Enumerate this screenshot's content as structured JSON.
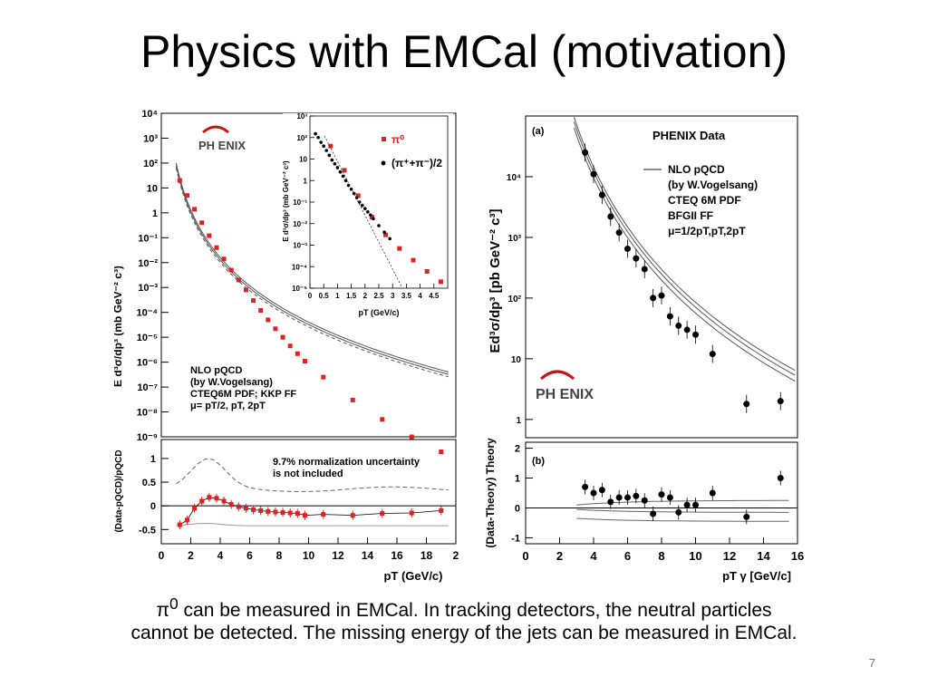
{
  "slide": {
    "title": "Physics with EMCal (motivation)",
    "caption_line1_symbol": "π",
    "caption_line1_sup": "0",
    "caption_line1_rest": " can be measured in EMCal. In tracking detectors, the neutral particles",
    "caption_line2": "cannot be detected. The missing energy of the jets can be measured in EMCal.",
    "page_number": "7"
  },
  "colors": {
    "red_points": "#dd2222",
    "black": "#000000",
    "logo_red": "#cc1111"
  },
  "chart_data": [
    {
      "type": "scatter",
      "panel": "left-main",
      "logo_text": "PH ENIX",
      "ylabel": "E d³σ/dp³ (mb GeV⁻² c³)",
      "yscale": "log",
      "ylim": [
        1e-09,
        10000
      ],
      "xlim": [
        0,
        20
      ],
      "ytick_labels": [
        "10⁴",
        "10³",
        "10²",
        "10",
        "1",
        "10⁻¹",
        "10⁻²",
        "10⁻³",
        "10⁻⁴",
        "10⁻⁵",
        "10⁻⁶",
        "10⁻⁷",
        "10⁻⁸",
        "10⁻⁹"
      ],
      "annotation": [
        "NLO pQCD",
        "(by W.Vogelsang)",
        "CTEQ6M PDF; KKP FF",
        "μ= pT/2, pT, 2pT"
      ],
      "series": [
        {
          "x": [
            1.25,
            1.75,
            2.25,
            2.75,
            3.25,
            3.75,
            4.25,
            4.75,
            5.25,
            5.75,
            6.25,
            6.75,
            7.25,
            7.75,
            8.25,
            8.75,
            9.25,
            9.75,
            11,
            13,
            15,
            17,
            19
          ],
          "values": [
            20,
            5,
            1.4,
            0.4,
            0.12,
            0.04,
            0.014,
            0.005,
            0.002,
            0.0008,
            0.0003,
            0.00012,
            5e-05,
            2.2e-05,
            1e-05,
            4.5e-06,
            2.2e-06,
            1.1e-06,
            2.5e-07,
            3e-08,
            5e-09,
            1e-09,
            2.5e-10
          ]
        }
      ]
    },
    {
      "type": "scatter",
      "panel": "left-inset",
      "ylabel": "E d³σ/dp³ (mb GeV⁻² c³)",
      "xlabel": "pT (GeV/c)",
      "yscale": "log",
      "ylim": [
        1e-05,
        1000
      ],
      "xlim": [
        0,
        5
      ],
      "ytick_labels": [
        "10³",
        "10²",
        "10",
        "1",
        "10⁻¹",
        "10⁻²",
        "10⁻³",
        "10⁻⁴",
        "10⁻⁵"
      ],
      "xtick_labels": [
        "0",
        "0.5",
        "1",
        "1.5",
        "2",
        "2.5",
        "3",
        "3.5",
        "4",
        "4.5"
      ],
      "series": [
        {
          "name": "π⁰",
          "x": [
            0.75,
            1.25,
            1.75,
            2.25,
            2.75,
            3.25,
            3.75,
            4.25,
            4.75
          ],
          "values": [
            40,
            3,
            0.2,
            0.02,
            0.003,
            0.0007,
            0.0002,
            6e-05,
            2e-05
          ]
        },
        {
          "name": "(π⁺+π⁻)/2",
          "x": [
            0.2,
            0.3,
            0.4,
            0.5,
            0.6,
            0.7,
            0.8,
            0.9,
            1.0,
            1.1,
            1.2,
            1.3,
            1.4,
            1.5,
            1.6,
            1.7,
            1.8,
            1.9,
            2.0,
            2.1,
            2.2,
            2.3,
            2.5,
            2.7,
            2.9
          ],
          "values": [
            150,
            100,
            60,
            40,
            25,
            15,
            9,
            6,
            4,
            2.5,
            1.6,
            1.0,
            0.6,
            0.4,
            0.25,
            0.16,
            0.1,
            0.07,
            0.05,
            0.035,
            0.025,
            0.017,
            0.008,
            0.004,
            0.002
          ]
        }
      ]
    },
    {
      "type": "scatter",
      "panel": "left-ratio",
      "ylabel": "(Data-pQCD)/pQCD",
      "xlabel": "pT (GeV/c)",
      "xlim": [
        0,
        20
      ],
      "ylim": [
        -0.8,
        1.4
      ],
      "xtick_labels": [
        "0",
        "2",
        "4",
        "6",
        "8",
        "10",
        "12",
        "14",
        "16",
        "18",
        "2"
      ],
      "ytick_labels": [
        "1",
        "0.5",
        "0",
        "-0.5"
      ],
      "annotation": [
        "9.7% normalization uncertainty",
        "is not included"
      ],
      "series": [
        {
          "x": [
            1.25,
            1.75,
            2.25,
            2.75,
            3.25,
            3.75,
            4.25,
            4.75,
            5.25,
            5.75,
            6.25,
            6.75,
            7.25,
            7.75,
            8.25,
            8.75,
            9.25,
            9.75,
            11,
            13,
            15,
            17,
            19
          ],
          "values": [
            -0.4,
            -0.3,
            -0.05,
            0.1,
            0.18,
            0.16,
            0.1,
            0.03,
            -0.02,
            -0.05,
            -0.08,
            -0.1,
            -0.12,
            -0.13,
            -0.14,
            -0.15,
            -0.16,
            -0.2,
            -0.18,
            -0.2,
            -0.16,
            -0.15,
            -0.1
          ]
        }
      ]
    },
    {
      "type": "scatter",
      "panel": "right-main",
      "panel_label": "(a)",
      "header": "PHENIX Data",
      "logo_text": "PH ENIX",
      "ylabel": "Ed³σ/dp³ [pb GeV⁻² c³]",
      "yscale": "log",
      "ylim": [
        0.5,
        100000
      ],
      "xlim": [
        0,
        16
      ],
      "ytick_labels": [
        "10⁴",
        "10³",
        "10²",
        "10",
        "1"
      ],
      "legend": [
        "NLO pQCD",
        "(by W.Vogelsang)",
        "CTEQ 6M PDF",
        "BFGII FF",
        "μ=1/2pT,pT,2pT"
      ],
      "series": [
        {
          "x": [
            3.5,
            4,
            4.5,
            5,
            5.5,
            6,
            6.5,
            7,
            7.5,
            8,
            8.5,
            9,
            9.5,
            10,
            11,
            13,
            15
          ],
          "values": [
            25000,
            11000,
            5000,
            2200,
            1200,
            650,
            450,
            300,
            100,
            110,
            50,
            35,
            30,
            25,
            12,
            1.8,
            2.0
          ]
        }
      ]
    },
    {
      "type": "scatter",
      "panel": "right-ratio",
      "panel_label": "(b)",
      "ylabel": "(Data-Theory) Theory",
      "xlabel": "pT γ [GeV/c]",
      "xlim": [
        0,
        16
      ],
      "ylim": [
        -1.2,
        2.2
      ],
      "ytick_labels": [
        "2",
        "1",
        "0",
        "-1"
      ],
      "xtick_labels": [
        "0",
        "2",
        "4",
        "6",
        "8",
        "10",
        "12",
        "14",
        "16"
      ],
      "series": [
        {
          "x": [
            3.5,
            4,
            4.5,
            5,
            5.5,
            6,
            6.5,
            7,
            7.5,
            8,
            8.5,
            9,
            9.5,
            10,
            11,
            13,
            15
          ],
          "values": [
            0.7,
            0.5,
            0.6,
            0.2,
            0.35,
            0.35,
            0.4,
            0.25,
            -0.2,
            0.45,
            0.35,
            -0.15,
            0.1,
            0.1,
            0.5,
            -0.3,
            1.0
          ]
        }
      ]
    }
  ]
}
